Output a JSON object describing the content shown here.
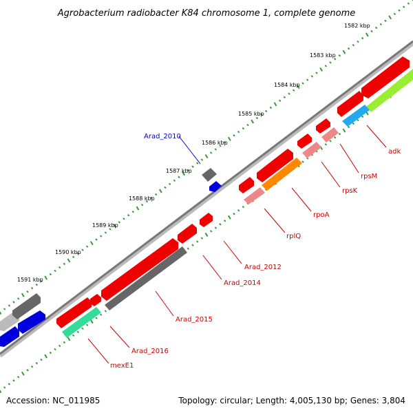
{
  "title": "Agrobacterium radiobacter K84 chromosome 1, complete genome",
  "footer": {
    "accession": "Accession: NC_011985",
    "summary": "Topology: circular; Length: 4,005,130 bp; Genes: 3,804"
  },
  "kbp_labels": [
    "1582 kbp",
    "1583 kbp",
    "1584 kbp",
    "1585 kbp",
    "1586 kbp",
    "1587 kbp",
    "1588 kbp",
    "1589 kbp",
    "1590 kbp",
    "1591 kbp"
  ],
  "gene_labels": [
    {
      "id": "adk",
      "text": "adk",
      "color": "#cc0000"
    },
    {
      "id": "rpsM",
      "text": "rpsM",
      "color": "#cc0000"
    },
    {
      "id": "rpsK",
      "text": "rpsK",
      "color": "#cc0000"
    },
    {
      "id": "rpoA",
      "text": "rpoA",
      "color": "#cc0000"
    },
    {
      "id": "rplQ",
      "text": "rplQ",
      "color": "#cc0000"
    },
    {
      "id": "arad-2012",
      "text": "Arad_2012",
      "color": "#cc0000"
    },
    {
      "id": "arad-2014",
      "text": "Arad_2014",
      "color": "#cc0000"
    },
    {
      "id": "arad-2015",
      "text": "Arad_2015",
      "color": "#cc0000"
    },
    {
      "id": "arad-2016",
      "text": "Arad_2016",
      "color": "#cc0000"
    },
    {
      "id": "mexe1",
      "text": "mexE1",
      "color": "#cc0000"
    },
    {
      "id": "arad-2010",
      "text": "Arad_2010",
      "color": "#0000cc"
    }
  ],
  "colors": {
    "red": "#ee0000",
    "pink": "#ee8888",
    "orange": "#ff8800",
    "lime": "#99ee33",
    "cyan": "#22aaee",
    "teal": "#33dd99",
    "gray": "#666666",
    "lightgray": "#bbbbbb",
    "blue": "#0000dd",
    "backbone": "#888888",
    "ticks_outer": "#339933",
    "ticks_inner": "#339933"
  }
}
